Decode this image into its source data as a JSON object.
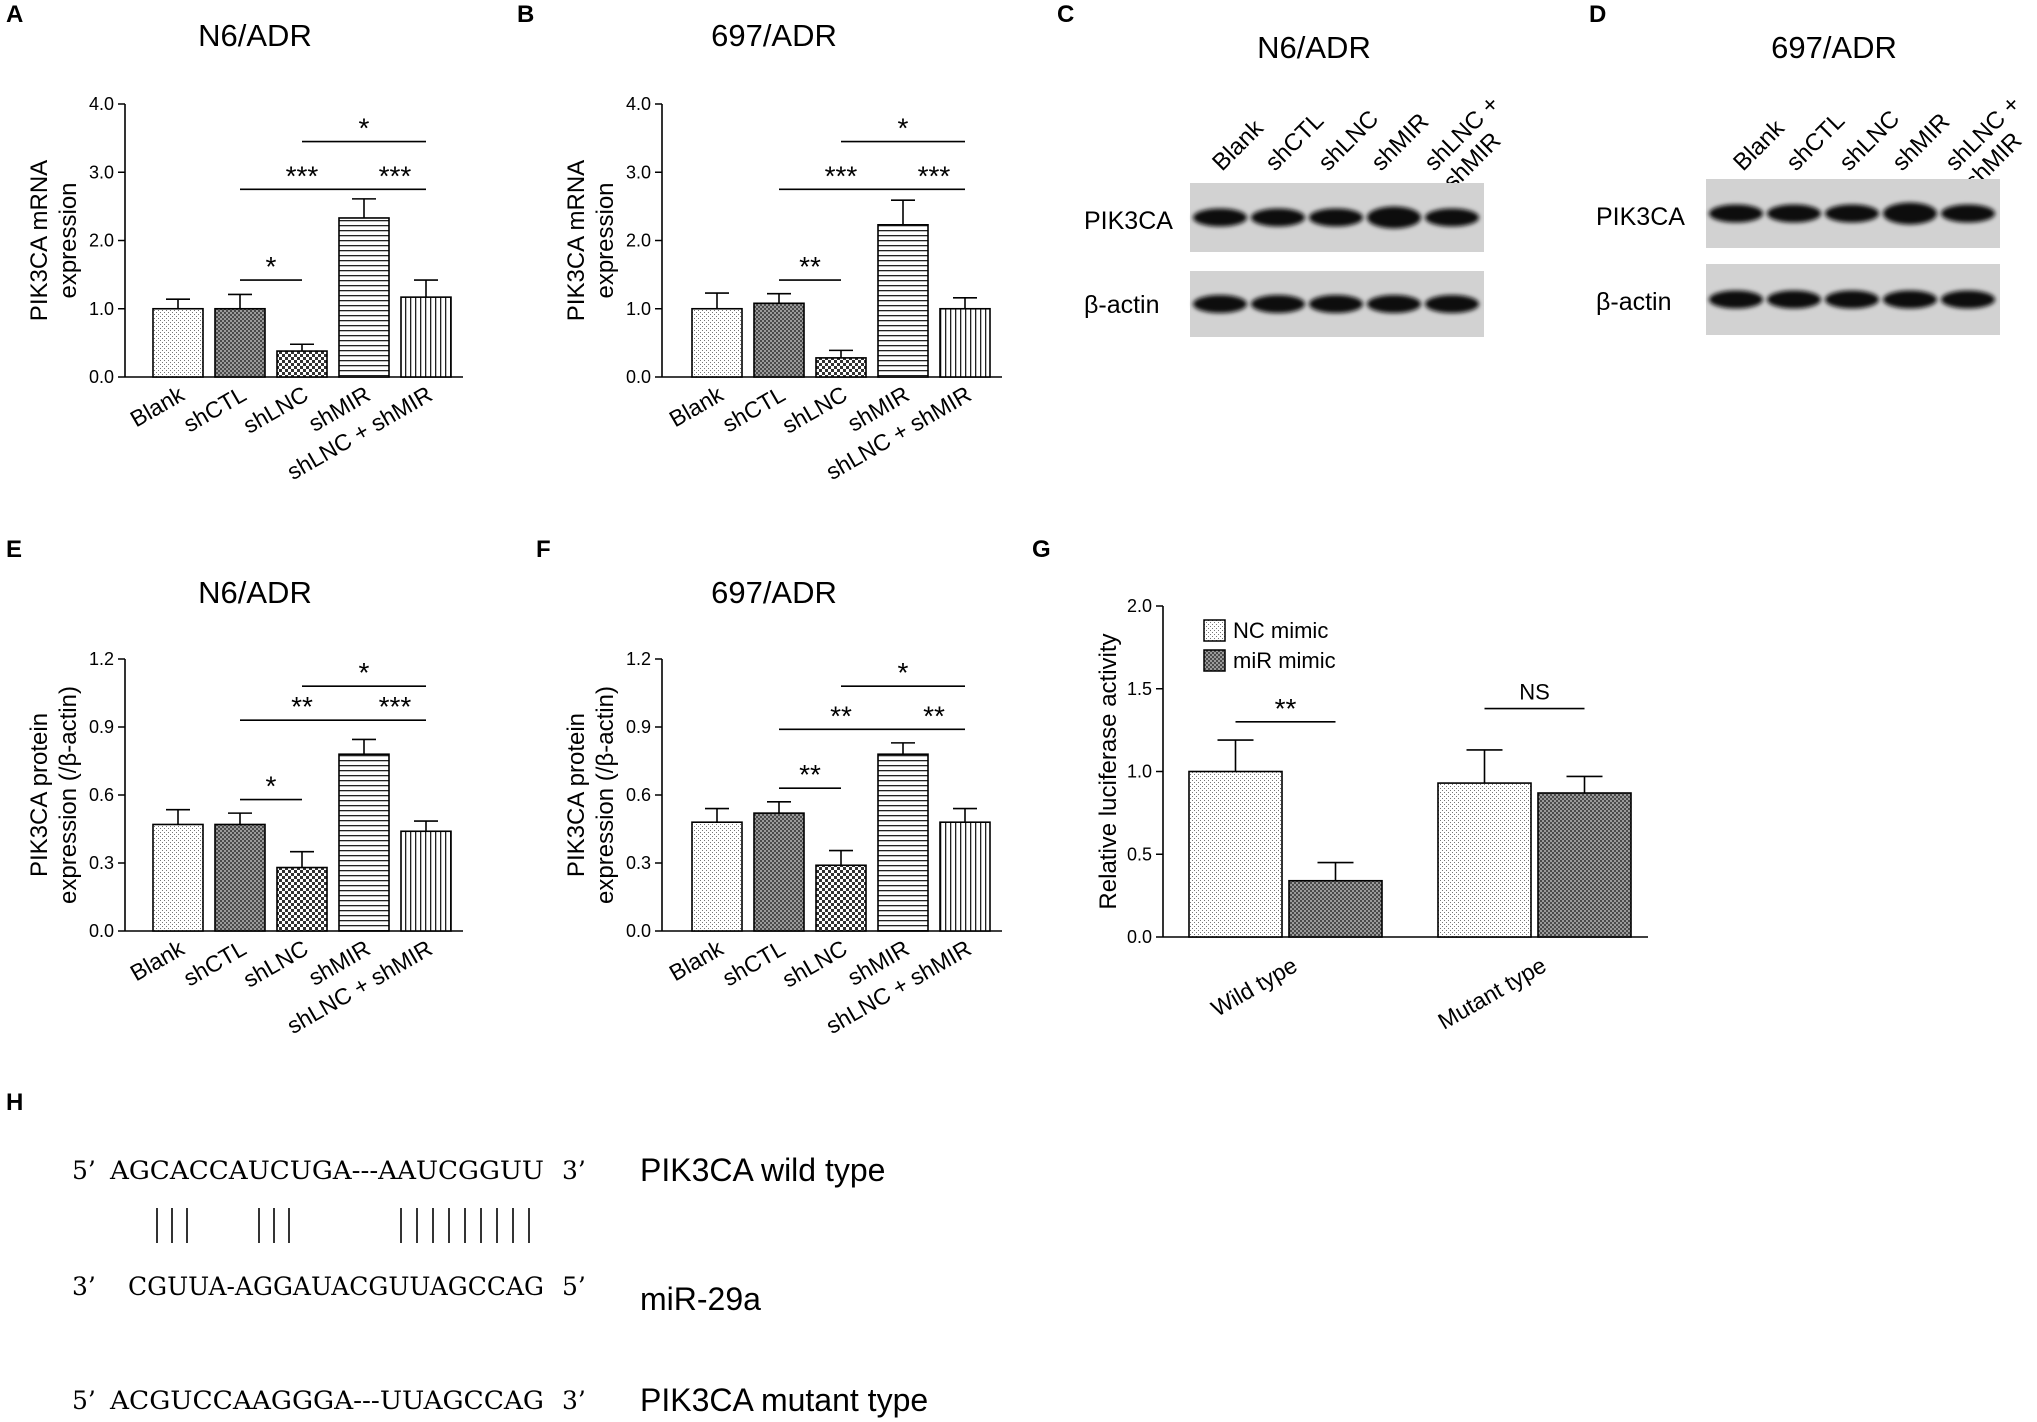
{
  "panel_labels": [
    "A",
    "B",
    "C",
    "D",
    "E",
    "F",
    "G",
    "H"
  ],
  "colors": {
    "axis": "#000000",
    "bar_stroke": "#000000",
    "blot_bg": "#d2d2d2",
    "band": "#111111"
  },
  "chart_data": [
    {
      "id": "A",
      "type": "bar",
      "title": "N6/ADR",
      "ylabel_lines": [
        "PIK3CA mRNA",
        "expression"
      ],
      "categories": [
        "Blank",
        "shCTL",
        "shLNC",
        "shMIR",
        "shLNC + shMIR"
      ],
      "values": [
        1.0,
        1.0,
        0.38,
        2.33,
        1.17
      ],
      "errors": [
        0.14,
        0.21,
        0.1,
        0.28,
        0.25
      ],
      "patterns": [
        "dots",
        "dense",
        "checker",
        "hstripe",
        "vstripe"
      ],
      "ylim": [
        0,
        4
      ],
      "yticks": [
        "0.0",
        "1.0",
        "2.0",
        "3.0",
        "4.0"
      ],
      "ytick_values": [
        0,
        1,
        2,
        3,
        4
      ],
      "significance": [
        {
          "from": 1,
          "to": 2,
          "label": "*",
          "y": 1.42
        },
        {
          "from": 1,
          "to": 3,
          "label": "***",
          "y": 2.75
        },
        {
          "from": 3,
          "to": 4,
          "label": "***",
          "y": 2.75
        },
        {
          "from": 2,
          "to": 4,
          "label": "*",
          "y": 3.45
        }
      ]
    },
    {
      "id": "B",
      "type": "bar",
      "title": "697/ADR",
      "ylabel_lines": [
        "PIK3CA mRNA",
        "expression"
      ],
      "categories": [
        "Blank",
        "shCTL",
        "shLNC",
        "shMIR",
        "shLNC + shMIR"
      ],
      "values": [
        1.0,
        1.08,
        0.28,
        2.23,
        1.0
      ],
      "errors": [
        0.23,
        0.14,
        0.11,
        0.36,
        0.16
      ],
      "patterns": [
        "dots",
        "dense",
        "checker",
        "hstripe",
        "vstripe"
      ],
      "ylim": [
        0,
        4
      ],
      "yticks": [
        "0.0",
        "1.0",
        "2.0",
        "3.0",
        "4.0"
      ],
      "ytick_values": [
        0,
        1,
        2,
        3,
        4
      ],
      "significance": [
        {
          "from": 1,
          "to": 2,
          "label": "**",
          "y": 1.42
        },
        {
          "from": 1,
          "to": 3,
          "label": "***",
          "y": 2.75
        },
        {
          "from": 3,
          "to": 4,
          "label": "***",
          "y": 2.75
        },
        {
          "from": 2,
          "to": 4,
          "label": "*",
          "y": 3.45
        }
      ]
    },
    {
      "id": "E",
      "type": "bar",
      "title": "N6/ADR",
      "ylabel_lines": [
        "PIK3CA protein",
        "expression (/β-actin)"
      ],
      "categories": [
        "Blank",
        "shCTL",
        "shLNC",
        "shMIR",
        "shLNC + shMIR"
      ],
      "values": [
        0.47,
        0.47,
        0.28,
        0.78,
        0.44
      ],
      "errors": [
        0.065,
        0.05,
        0.07,
        0.065,
        0.045
      ],
      "patterns": [
        "dots",
        "dense",
        "checker",
        "hstripe",
        "vstripe"
      ],
      "ylim": [
        0,
        1.2
      ],
      "yticks": [
        "0.0",
        "0.3",
        "0.6",
        "0.9",
        "1.2"
      ],
      "ytick_values": [
        0,
        0.3,
        0.6,
        0.9,
        1.2
      ],
      "significance": [
        {
          "from": 1,
          "to": 2,
          "label": "*",
          "y": 0.58
        },
        {
          "from": 1,
          "to": 3,
          "label": "**",
          "y": 0.93
        },
        {
          "from": 3,
          "to": 4,
          "label": "***",
          "y": 0.93
        },
        {
          "from": 2,
          "to": 4,
          "label": "*",
          "y": 1.08
        }
      ]
    },
    {
      "id": "F",
      "type": "bar",
      "title": "697/ADR",
      "ylabel_lines": [
        "PIK3CA protein",
        "expression (/β-actin)"
      ],
      "categories": [
        "Blank",
        "shCTL",
        "shLNC",
        "shMIR",
        "shLNC + shMIR"
      ],
      "values": [
        0.48,
        0.52,
        0.29,
        0.78,
        0.48
      ],
      "errors": [
        0.06,
        0.05,
        0.065,
        0.05,
        0.06
      ],
      "patterns": [
        "dots",
        "dense",
        "checker",
        "hstripe",
        "vstripe"
      ],
      "ylim": [
        0,
        1.2
      ],
      "yticks": [
        "0.0",
        "0.3",
        "0.6",
        "0.9",
        "1.2"
      ],
      "ytick_values": [
        0,
        0.3,
        0.6,
        0.9,
        1.2
      ],
      "significance": [
        {
          "from": 1,
          "to": 2,
          "label": "**",
          "y": 0.63
        },
        {
          "from": 1,
          "to": 3,
          "label": "**",
          "y": 0.89
        },
        {
          "from": 3,
          "to": 4,
          "label": "**",
          "y": 0.89
        },
        {
          "from": 2,
          "to": 4,
          "label": "*",
          "y": 1.08
        }
      ]
    },
    {
      "id": "G",
      "type": "bar",
      "title": "",
      "ylabel_lines": [
        "Relative luciferase activity"
      ],
      "categories": [
        "Wild type",
        "Mutant type"
      ],
      "series": [
        {
          "name": "NC mimic",
          "values": [
            1.0,
            0.93
          ],
          "errors": [
            0.19,
            0.2
          ],
          "pattern": "dots"
        },
        {
          "name": "miR mimic",
          "values": [
            0.34,
            0.87
          ],
          "errors": [
            0.11,
            0.1
          ],
          "pattern": "dense"
        }
      ],
      "ylim": [
        0,
        2
      ],
      "yticks": [
        "0.0",
        "0.5",
        "1.0",
        "1.5",
        "2.0"
      ],
      "ytick_values": [
        0,
        0.5,
        1,
        1.5,
        2
      ],
      "legend_position": "top-left",
      "significance": [
        {
          "group": 0,
          "label": "**",
          "y": 1.3
        },
        {
          "group": 1,
          "label": "NS",
          "y": 1.38
        }
      ]
    }
  ],
  "blots": [
    {
      "id": "C",
      "title": "N6/ADR",
      "lanes": [
        "Blank",
        "shCTL",
        "shLNC",
        "shMIR",
        "shLNC +|shMIR"
      ],
      "rows": [
        "PIK3CA",
        "β-actin"
      ]
    },
    {
      "id": "D",
      "title": "697/ADR",
      "lanes": [
        "Blank",
        "shCTL",
        "shLNC",
        "shMIR",
        "shLNC +|shMIR"
      ],
      "rows": [
        "PIK3CA",
        "β-actin"
      ]
    }
  ],
  "sequences": [
    {
      "prime_left": "5’",
      "seq": "AGCACCAUCUGA---AAUCGGUU",
      "prime_right": "3’",
      "label": "PIK3CA wild type"
    },
    {
      "prime_left": "3’",
      "seq": "CGUUA-AGGAUACGUUAGCCAG",
      "prime_right": "5’",
      "label": "miR-29a"
    },
    {
      "prime_left": "5’",
      "seq": "ACGUCCAAGGGA---UUAGCCAG",
      "prime_right": "3’",
      "label": "PIK3CA mutant type"
    }
  ]
}
